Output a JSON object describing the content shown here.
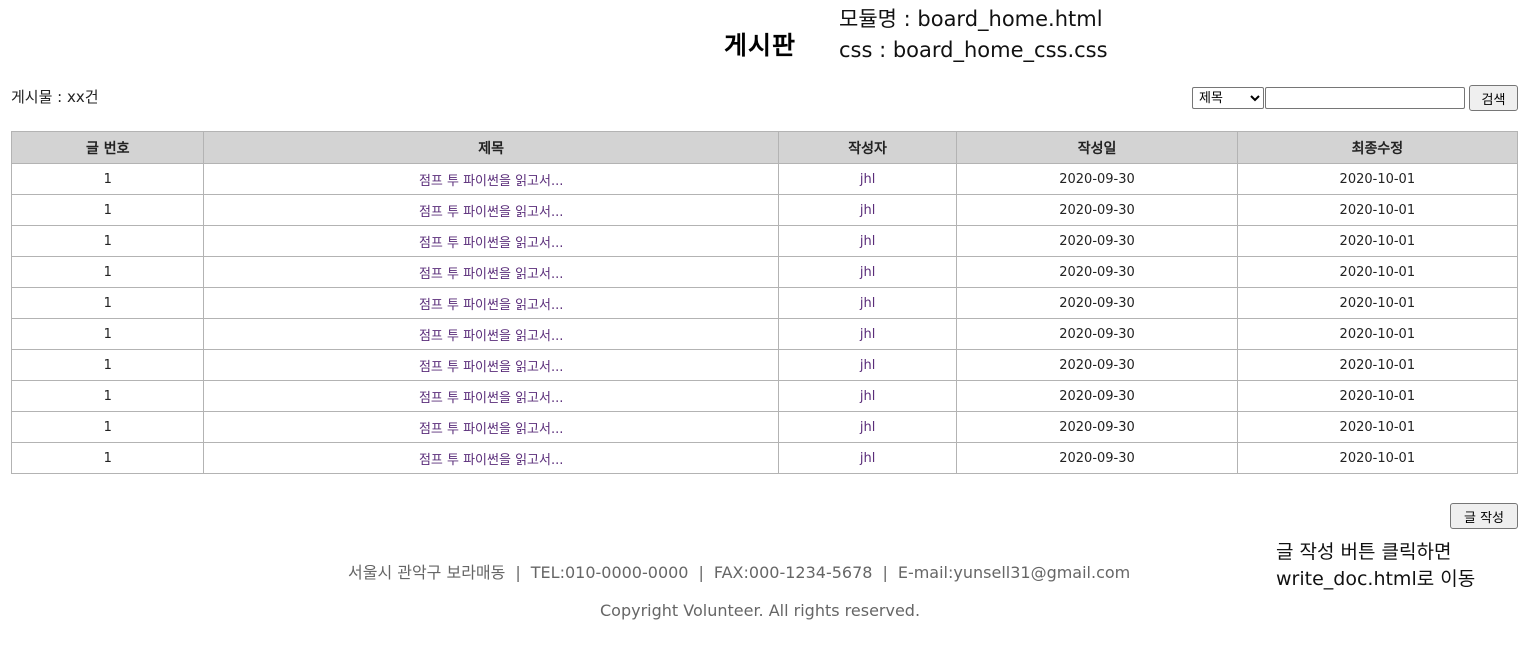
{
  "header": {
    "title": "게시판",
    "module_name": "모듈명 : board_home.html",
    "css_name": "css : board_home_css.css"
  },
  "toolbar": {
    "post_count": "게시물 : xx건",
    "search_select_value": "제목",
    "search_placeholder": "",
    "search_label": "검색"
  },
  "table": {
    "headers": [
      "글 번호",
      "제목",
      "작성자",
      "작성일",
      "최종수정"
    ],
    "rows": [
      {
        "no": "1",
        "title": "점프 투 파이썬을 읽고서...",
        "author": "jhl",
        "created": "2020-09-30",
        "modified": "2020-10-01"
      },
      {
        "no": "1",
        "title": "점프 투 파이썬을 읽고서...",
        "author": "jhl",
        "created": "2020-09-30",
        "modified": "2020-10-01"
      },
      {
        "no": "1",
        "title": "점프 투 파이썬을 읽고서...",
        "author": "jhl",
        "created": "2020-09-30",
        "modified": "2020-10-01"
      },
      {
        "no": "1",
        "title": "점프 투 파이썬을 읽고서...",
        "author": "jhl",
        "created": "2020-09-30",
        "modified": "2020-10-01"
      },
      {
        "no": "1",
        "title": "점프 투 파이썬을 읽고서...",
        "author": "jhl",
        "created": "2020-09-30",
        "modified": "2020-10-01"
      },
      {
        "no": "1",
        "title": "점프 투 파이썬을 읽고서...",
        "author": "jhl",
        "created": "2020-09-30",
        "modified": "2020-10-01"
      },
      {
        "no": "1",
        "title": "점프 투 파이썬을 읽고서...",
        "author": "jhl",
        "created": "2020-09-30",
        "modified": "2020-10-01"
      },
      {
        "no": "1",
        "title": "점프 투 파이썬을 읽고서...",
        "author": "jhl",
        "created": "2020-09-30",
        "modified": "2020-10-01"
      },
      {
        "no": "1",
        "title": "점프 투 파이썬을 읽고서...",
        "author": "jhl",
        "created": "2020-09-30",
        "modified": "2020-10-01"
      },
      {
        "no": "1",
        "title": "점프 투 파이썬을 읽고서...",
        "author": "jhl",
        "created": "2020-09-30",
        "modified": "2020-10-01"
      }
    ]
  },
  "write": {
    "button_label": "글 작성",
    "note_line1": "글 작성 버튼 클릭하면",
    "note_line2": "write_doc.html로 이동"
  },
  "footer": {
    "address": "서울시 관악구 보라매동",
    "separator": "|",
    "tel": "TEL:010-0000-0000",
    "fax": "FAX:000-1234-5678",
    "email": "E-mail:yunsell31@gmail.com",
    "copyright": "Copyright Volunteer. All rights reserved."
  },
  "colors": {
    "header_bg": "#d3d3d3",
    "link_text": "#5a2d7a",
    "footer_text": "#666666"
  }
}
